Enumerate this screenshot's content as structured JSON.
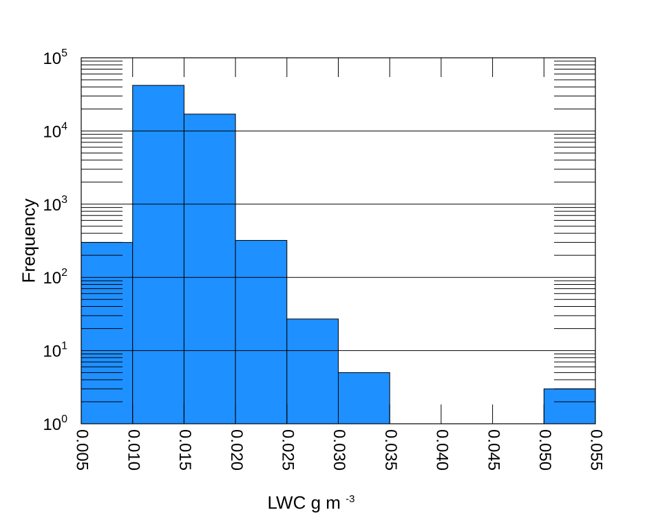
{
  "chart_data": {
    "type": "bar",
    "xlabel": "LWC g m",
    "xlabel_superscript": "-3",
    "ylabel": "Frequency",
    "bin_edges": [
      0.005,
      0.01,
      0.015,
      0.02,
      0.025,
      0.03,
      0.035,
      0.04,
      0.045,
      0.05,
      0.055
    ],
    "values": [
      300,
      42000,
      17000,
      320,
      27,
      5,
      0,
      0,
      0,
      3
    ],
    "xlim": [
      0.005,
      0.055
    ],
    "ylim": [
      1,
      100000
    ],
    "yscale": "log",
    "xtick_labels": [
      "0.005",
      "0.010",
      "0.015",
      "0.020",
      "0.025",
      "0.030",
      "0.035",
      "0.040",
      "0.045",
      "0.050",
      "0.055"
    ],
    "ytick_labels": [
      {
        "base": "10",
        "exp": "0"
      },
      {
        "base": "10",
        "exp": "1"
      },
      {
        "base": "10",
        "exp": "2"
      },
      {
        "base": "10",
        "exp": "3"
      },
      {
        "base": "10",
        "exp": "4"
      },
      {
        "base": "10",
        "exp": "5"
      }
    ],
    "grid": "horizontal at decades",
    "bar_color": "#1e90ff",
    "edge_color": "#000000"
  }
}
